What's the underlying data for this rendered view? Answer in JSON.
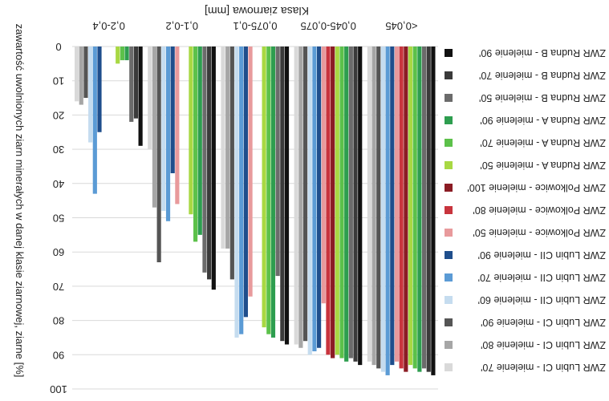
{
  "chart_data": {
    "type": "bar",
    "orientation": "rotated-180",
    "title": "Klasa ziarnowa [mm]",
    "ylabel": "zawartość uwolnionych ziarn minerałych w danej klasie ziarnowej, ziarne [%]",
    "ylim": [
      0,
      100
    ],
    "y_ticks": [
      "0",
      "10",
      "20",
      "30",
      "40",
      "50",
      "60",
      "70",
      "80",
      "90",
      "100"
    ],
    "legend_position": "right",
    "grid": true,
    "categories": [
      "0,2-0,4",
      "0,1-0,2",
      "0,075-0,1",
      "0,045-0,075",
      "<0,045"
    ],
    "series": [
      {
        "name": "ZWR Rudna B - mielenie 90'",
        "color": "#111111",
        "values": [
          29,
          71,
          87,
          93,
          96
        ]
      },
      {
        "name": "ZWR Rudna B - mielenie 70'",
        "color": "#3a3a3a",
        "values": [
          21,
          68,
          86,
          92,
          95
        ]
      },
      {
        "name": "ZWR Rudna B - mielenie 50'",
        "color": "#6b6b6b",
        "values": [
          22,
          66,
          67,
          91,
          94
        ]
      },
      {
        "name": "ZWR Rudna A - mielenie 90'",
        "color": "#2e9e4f",
        "values": [
          4,
          55,
          85,
          92,
          95
        ]
      },
      {
        "name": "ZWR Rudna A - mielenie 70'",
        "color": "#5cc14a",
        "values": [
          4,
          57,
          84,
          91,
          94
        ]
      },
      {
        "name": "ZWR Rudna A - mielenie 50'",
        "color": "#a8d843",
        "values": [
          5,
          49,
          82,
          90,
          93
        ]
      },
      {
        "name": "ZWR Polkowice - mielenie 100'",
        "color": "#8b1c24",
        "values": [
          0,
          0,
          0,
          91,
          95
        ]
      },
      {
        "name": "ZWR Polkowice - mielenie 80'",
        "color": "#c8343d",
        "values": [
          0,
          0,
          0,
          90,
          94
        ]
      },
      {
        "name": "ZWR Polkowice - mielenie 50'",
        "color": "#e89a9c",
        "values": [
          0,
          46,
          73,
          75,
          92
        ]
      },
      {
        "name": "ZWR Lubin CII - mielenie 90'",
        "color": "#1f4e8c",
        "values": [
          25,
          37,
          79,
          88,
          93
        ]
      },
      {
        "name": "ZWR Lubin CII - mielenie 70'",
        "color": "#5b9bd5",
        "values": [
          43,
          51,
          84,
          89,
          96
        ]
      },
      {
        "name": "ZWR Lubin CII - mielenie 60'",
        "color": "#c5dcef",
        "values": [
          28,
          48,
          85,
          90,
          95
        ]
      },
      {
        "name": "ZWR Lubin CI - mielenie 90'",
        "color": "#555555",
        "values": [
          15,
          63,
          68,
          86,
          94
        ]
      },
      {
        "name": "ZWR Lubin CI - mielenie 80'",
        "color": "#a6a6a6",
        "values": [
          17,
          47,
          59,
          88,
          93
        ]
      },
      {
        "name": "ZWR Lubin CI - mielenie 70'",
        "color": "#d9d9d9",
        "values": [
          16,
          30,
          59,
          87,
          92
        ]
      }
    ]
  }
}
